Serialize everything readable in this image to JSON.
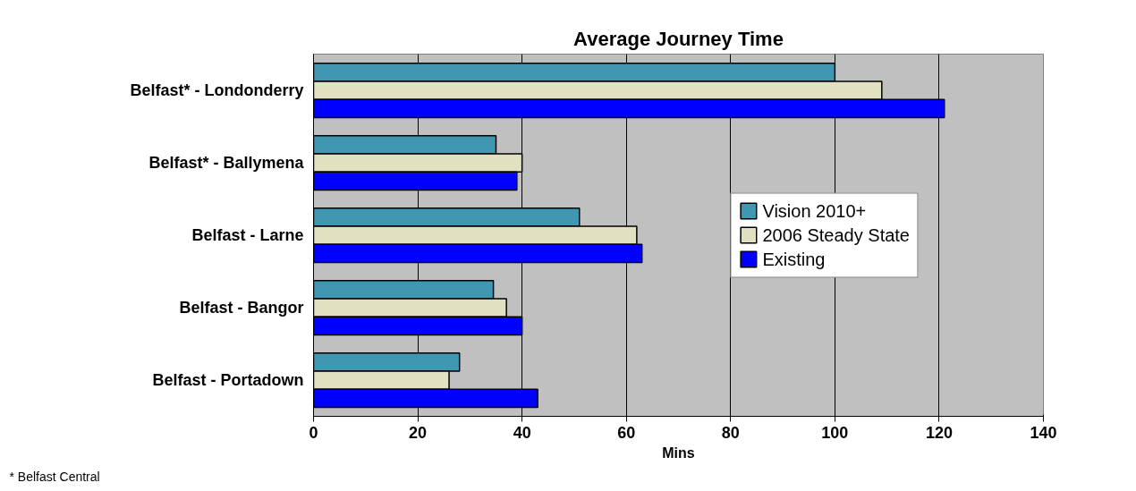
{
  "chart_data": {
    "type": "bar",
    "orientation": "horizontal",
    "title": "Average Journey Time",
    "xlabel": "Mins",
    "categories": [
      "Belfast* - Londonderry",
      "Belfast* - Ballymena",
      "Belfast - Larne",
      "Belfast - Bangor",
      "Belfast - Portadown"
    ],
    "series": [
      {
        "name": "Vision 2010+",
        "color": "#3f97b1",
        "values": [
          100,
          35,
          51,
          34.5,
          28
        ]
      },
      {
        "name": "2006 Steady State",
        "color": "#e1e1c2",
        "values": [
          109,
          40,
          62,
          37,
          26
        ]
      },
      {
        "name": "Existing",
        "color": "#0000ff",
        "values": [
          121,
          39,
          63,
          40,
          43
        ]
      }
    ],
    "xlim": [
      0,
      140
    ],
    "xticks": [
      0,
      20,
      40,
      60,
      80,
      100,
      120,
      140
    ],
    "grid": "x",
    "legend": "right",
    "annotations": [
      "* Belfast Central"
    ]
  }
}
